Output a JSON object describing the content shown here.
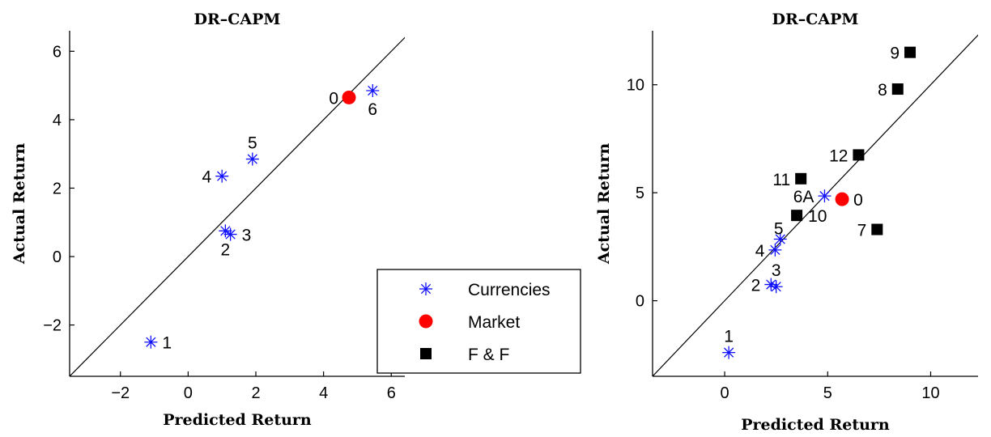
{
  "colors": {
    "currencies": "#1010ff",
    "market": "#ff0000",
    "ff": "#000000",
    "axis": "#000000"
  },
  "legend": {
    "placement": "bottom-right",
    "entries": [
      {
        "label": "Currencies",
        "marker": "asterisk",
        "color": "#1010ff"
      },
      {
        "label": "Market",
        "marker": "circle",
        "color": "#ff0000"
      },
      {
        "label": "F & F",
        "marker": "square",
        "color": "#000000"
      }
    ]
  },
  "chart_data": [
    {
      "type": "scatter",
      "title": "DR–CAPM",
      "xlabel": "Predicted Return",
      "ylabel": "Actual Return",
      "xlim": [
        -3.5,
        6.4
      ],
      "ylim": [
        -3.5,
        6.6
      ],
      "xticks": [
        -2,
        0,
        2,
        4,
        6
      ],
      "xtick_labels": [
        "−2",
        "0",
        "2",
        "4",
        "6"
      ],
      "yticks": [
        -2,
        0,
        2,
        4,
        6
      ],
      "ytick_labels": [
        "−2",
        "0",
        "2",
        "4",
        "6"
      ],
      "diagonal": true,
      "grid": false,
      "series": [
        {
          "name": "Currencies",
          "marker": "asterisk",
          "points": [
            {
              "x": -1.1,
              "y": -2.5,
              "label": "1",
              "pos": "right"
            },
            {
              "x": 1.1,
              "y": 0.75,
              "label": "2",
              "pos": "below"
            },
            {
              "x": 1.25,
              "y": 0.65,
              "label": "3",
              "pos": "right"
            },
            {
              "x": 1.0,
              "y": 2.35,
              "label": "4",
              "pos": "left"
            },
            {
              "x": 1.9,
              "y": 2.85,
              "label": "5",
              "pos": "above"
            },
            {
              "x": 5.45,
              "y": 4.85,
              "label": "6",
              "pos": "below"
            }
          ]
        },
        {
          "name": "Market",
          "marker": "circle",
          "points": [
            {
              "x": 4.75,
              "y": 4.65,
              "label": "0",
              "pos": "left"
            }
          ]
        }
      ]
    },
    {
      "type": "scatter",
      "title": "DR–CAPM",
      "xlabel": "Predicted Return",
      "ylabel": "Actual Return",
      "xlim": [
        -3.5,
        12.3
      ],
      "ylim": [
        -3.5,
        12.5
      ],
      "xticks": [
        0,
        5,
        10
      ],
      "xtick_labels": [
        "0",
        "5",
        "10"
      ],
      "yticks": [
        0,
        5,
        10
      ],
      "ytick_labels": [
        "0",
        "5",
        "10"
      ],
      "diagonal": true,
      "grid": false,
      "series": [
        {
          "name": "Currencies",
          "marker": "asterisk",
          "points": [
            {
              "x": 0.2,
              "y": -2.4,
              "label": "1",
              "pos": "above"
            },
            {
              "x": 2.25,
              "y": 0.75,
              "label": "2",
              "pos": "left"
            },
            {
              "x": 2.5,
              "y": 0.65,
              "label": "3",
              "pos": "above"
            },
            {
              "x": 2.45,
              "y": 2.35,
              "label": "4",
              "pos": "left"
            },
            {
              "x": 2.7,
              "y": 2.85,
              "label": "5",
              "pos": "upleft"
            },
            {
              "x": 4.85,
              "y": 4.85,
              "label": "6A",
              "pos": "left"
            }
          ]
        },
        {
          "name": "Market",
          "marker": "circle",
          "points": [
            {
              "x": 5.7,
              "y": 4.7,
              "label": "0",
              "pos": "right"
            }
          ]
        },
        {
          "name": "F & F",
          "marker": "square",
          "points": [
            {
              "x": 7.4,
              "y": 3.3,
              "label": "7",
              "pos": "left"
            },
            {
              "x": 8.4,
              "y": 9.8,
              "label": "8",
              "pos": "left"
            },
            {
              "x": 9.0,
              "y": 11.5,
              "label": "9",
              "pos": "left"
            },
            {
              "x": 3.5,
              "y": 3.95,
              "label": "10",
              "pos": "right"
            },
            {
              "x": 3.7,
              "y": 5.65,
              "label": "11",
              "pos": "left"
            },
            {
              "x": 6.5,
              "y": 6.75,
              "label": "12",
              "pos": "left"
            }
          ]
        }
      ]
    }
  ]
}
